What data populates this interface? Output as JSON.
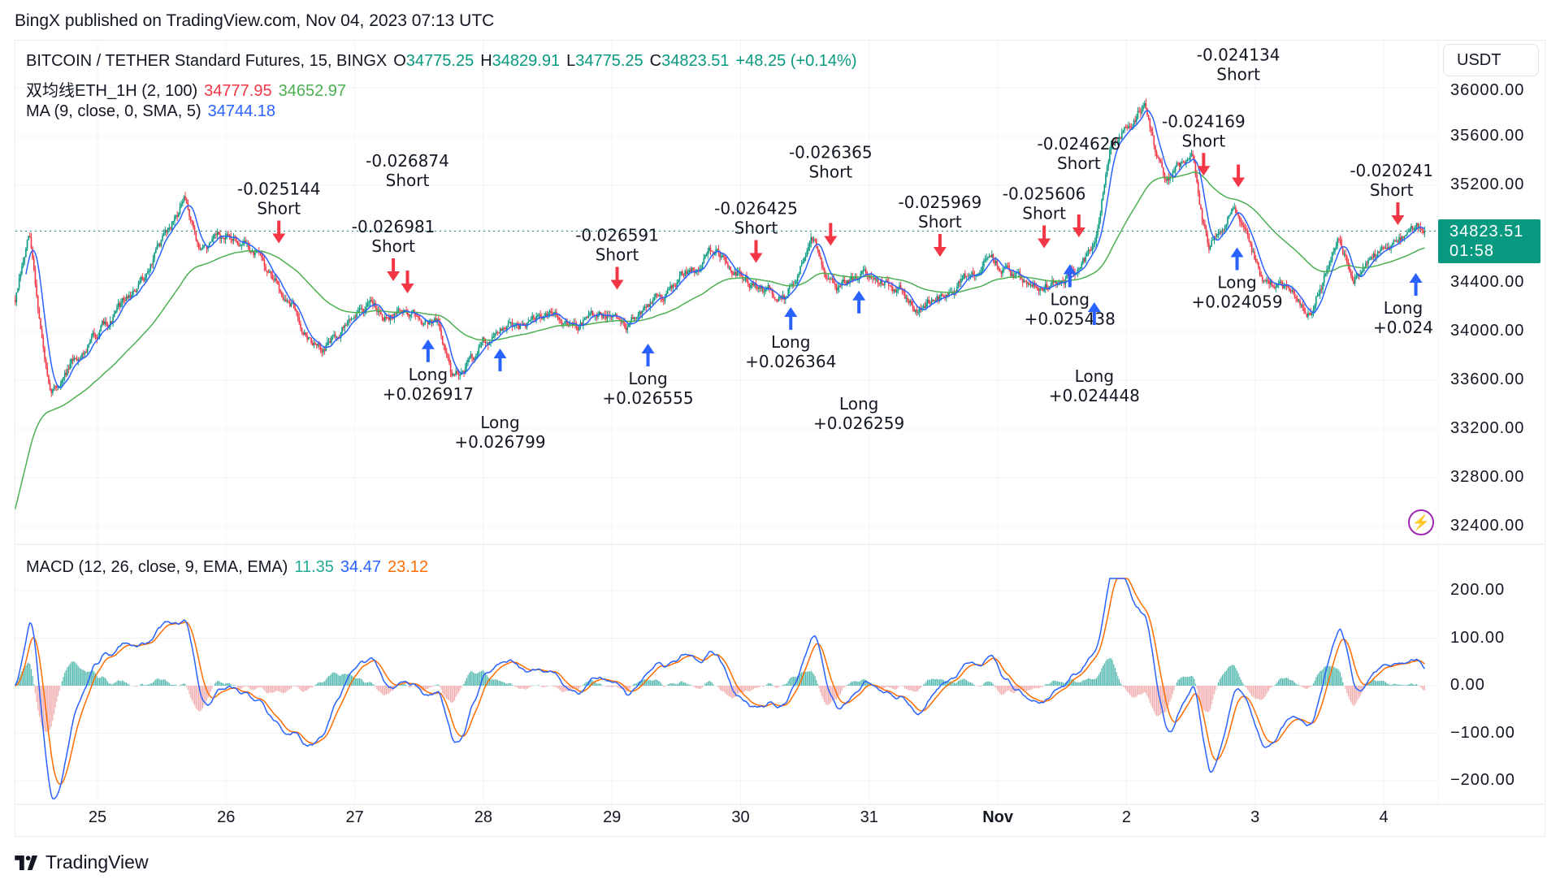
{
  "publish_line": "BingX published on TradingView.com, Nov 04, 2023 07:13 UTC",
  "legend": {
    "symbol": "BITCOIN / TETHER Standard Futures, 15, BINGX",
    "o_label": "O",
    "o": "34775.25",
    "h_label": "H",
    "h": "34829.91",
    "l_label": "L",
    "l": "34775.25",
    "c_label": "C",
    "c": "34823.51",
    "change": "+48.25 (+0.14%)",
    "dual_ma_name": "双均线ETH_1H (2, 100)",
    "dual_ma_fast": "34777.95",
    "dual_ma_slow": "34652.97",
    "ma_name": "MA (9, close, 0, SMA, 5)",
    "ma_value": "34744.18",
    "macd_name": "MACD (12, 26, close, 9, EMA, EMA)",
    "macd_hist": "11.35",
    "macd_line": "34.47",
    "macd_signal": "23.12"
  },
  "currency_button": "USDT",
  "current_price": {
    "value": "34823.51",
    "countdown": "01:58"
  },
  "price_axis": [
    "36000.00",
    "35600.00",
    "35200.00",
    "34400.00",
    "34000.00",
    "33600.00",
    "33200.00",
    "32800.00",
    "32400.00"
  ],
  "macd_axis": [
    "200.00",
    "100.00",
    "0.00",
    "−100.00",
    "−200.00"
  ],
  "time_axis": [
    "25",
    "26",
    "27",
    "28",
    "29",
    "30",
    "31",
    "Nov",
    "2",
    "3",
    "4"
  ],
  "brand": "TradingView",
  "colors": {
    "up": "#089981",
    "down": "#f23645",
    "ma_blue": "#2962ff",
    "ma_green": "#4caf50",
    "macd_signal": "#ff6d00",
    "alert": "#9c27b0"
  },
  "chart_data": {
    "type": "candlestick",
    "x_unit": "days since Oct 25",
    "price_path": [
      [
        -0.64,
        34260
      ],
      [
        -0.53,
        34750
      ],
      [
        -0.37,
        33440
      ],
      [
        -0.06,
        33935
      ],
      [
        0.32,
        34340
      ],
      [
        0.67,
        35080
      ],
      [
        0.79,
        34670
      ],
      [
        1.14,
        34750
      ],
      [
        1.48,
        34260
      ],
      [
        1.72,
        33850
      ],
      [
        2.03,
        34180
      ],
      [
        2.34,
        34180
      ],
      [
        2.65,
        34100
      ],
      [
        2.76,
        33610
      ],
      [
        3.11,
        34020
      ],
      [
        3.5,
        34100
      ],
      [
        3.96,
        34100
      ],
      [
        4.11,
        34020
      ],
      [
        4.5,
        34420
      ],
      [
        4.81,
        34670
      ],
      [
        5.12,
        34340
      ],
      [
        5.35,
        34260
      ],
      [
        5.55,
        34790
      ],
      [
        5.74,
        34340
      ],
      [
        6.05,
        34500
      ],
      [
        6.36,
        34180
      ],
      [
        6.67,
        34340
      ],
      [
        6.9,
        34590
      ],
      [
        7.21,
        34420
      ],
      [
        7.52,
        34420
      ],
      [
        7.75,
        34670
      ],
      [
        7.87,
        35490
      ],
      [
        8.14,
        35900
      ],
      [
        8.29,
        35240
      ],
      [
        8.52,
        35400
      ],
      [
        8.64,
        34670
      ],
      [
        8.83,
        35080
      ],
      [
        9.06,
        34420
      ],
      [
        9.45,
        34180
      ],
      [
        9.64,
        34750
      ],
      [
        9.76,
        34420
      ],
      [
        10.07,
        34710
      ],
      [
        10.32,
        34823.51
      ]
    ],
    "price_range": [
      32200,
      36100
    ],
    "macd_range": [
      -250,
      250
    ],
    "signals": [
      {
        "day": 1.41,
        "price": 34710,
        "type": "short",
        "value": "-0.025144",
        "label": "Short"
      },
      {
        "day": 2.3,
        "price": 34400,
        "type": "short",
        "value": "-0.026981",
        "label": "Short"
      },
      {
        "day": 2.41,
        "price": 34300,
        "type": "short",
        "value": "-0.026874",
        "label": "Short"
      },
      {
        "day": 4.04,
        "price": 34330,
        "type": "short",
        "value": "-0.026591",
        "label": "Short"
      },
      {
        "day": 5.12,
        "price": 34550,
        "type": "short",
        "value": "-0.026425",
        "label": "Short"
      },
      {
        "day": 5.7,
        "price": 34690,
        "type": "short",
        "value": "-0.026365",
        "label": "Short"
      },
      {
        "day": 6.55,
        "price": 34600,
        "type": "short",
        "value": "-0.025969",
        "label": "Short"
      },
      {
        "day": 7.36,
        "price": 34670,
        "type": "short",
        "value": "-0.025606",
        "label": "Short"
      },
      {
        "day": 7.63,
        "price": 34760,
        "type": "short",
        "value": "-0.024626",
        "label": "Short"
      },
      {
        "day": 8.6,
        "price": 35265,
        "type": "short",
        "value": "-0.024169",
        "label": "Short"
      },
      {
        "day": 8.87,
        "price": 35170,
        "type": "short",
        "value": "-0.024134",
        "label": "Short"
      },
      {
        "day": 10.11,
        "price": 34860,
        "type": "short",
        "value": "-0.020241",
        "label": "Short"
      },
      {
        "day": 2.57,
        "price": 33935,
        "type": "long",
        "value": "+0.026917",
        "label": "Long"
      },
      {
        "day": 3.13,
        "price": 33860,
        "type": "long",
        "value": "+0.026799",
        "label": "Long"
      },
      {
        "day": 4.28,
        "price": 33900,
        "type": "long",
        "value": "+0.026555",
        "label": "Long"
      },
      {
        "day": 5.39,
        "price": 34200,
        "type": "long",
        "value": "+0.026364",
        "label": "Long"
      },
      {
        "day": 5.92,
        "price": 34335,
        "type": "long",
        "value": "+0.026259",
        "label": "Long"
      },
      {
        "day": 7.56,
        "price": 34550,
        "type": "long",
        "value": "+0.025438",
        "label": "Long"
      },
      {
        "day": 7.75,
        "price": 34240,
        "type": "long",
        "value": "+0.024448",
        "label": "Long"
      },
      {
        "day": 8.86,
        "price": 34690,
        "type": "long",
        "value": "+0.024059",
        "label": "Long"
      },
      {
        "day": 10.25,
        "price": 34480,
        "type": "long",
        "value": "+0.024",
        "label": "Long"
      }
    ]
  }
}
